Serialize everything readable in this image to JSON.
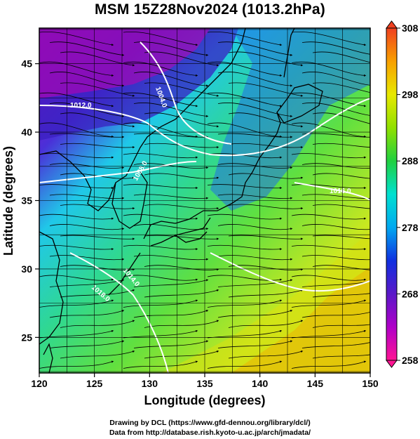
{
  "title": "MSM 15Z28Nov2024 (1013.2hPa)",
  "x_axis": {
    "label": "Longitude (degrees)",
    "range": [
      120,
      150
    ],
    "ticks": [
      "120",
      "125",
      "130",
      "135",
      "140",
      "145",
      "150"
    ]
  },
  "y_axis": {
    "label": "Latitude  (degrees)",
    "range": [
      22.4,
      47.6
    ],
    "ticks": [
      "25",
      "30",
      "35",
      "40",
      "45"
    ]
  },
  "colorbar": {
    "range": [
      258,
      308
    ],
    "ticks": [
      "308",
      "298",
      "288",
      "278",
      "268",
      "258"
    ],
    "colors": [
      "#ff1493",
      "#b000c8",
      "#5a18c8",
      "#1030e0",
      "#00a8f0",
      "#00e0d0",
      "#20d040",
      "#90e000",
      "#e8e800",
      "#f8a000",
      "#f04020"
    ]
  },
  "contour_labels": [
    "1012.0",
    "1004.0",
    "1008.0",
    "1014.0",
    "1016.0",
    "1018.0"
  ],
  "credits": {
    "line1": "Drawing by DCL (https://www.gfd-dennou.org/library/dcl/)",
    "line2": "Data from http://database.rish.kyoto-u.ac.jp/arch/jmadata/"
  }
}
